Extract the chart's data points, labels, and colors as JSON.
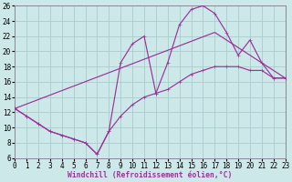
{
  "xlabel": "Windchill (Refroidissement éolien,°C)",
  "bg_color": "#cce8e8",
  "grid_color": "#aacccc",
  "line_color": "#993399",
  "xlim": [
    0,
    23
  ],
  "ylim": [
    6,
    26
  ],
  "xticks": [
    0,
    1,
    2,
    3,
    4,
    5,
    6,
    7,
    8,
    9,
    10,
    11,
    12,
    13,
    14,
    15,
    16,
    17,
    18,
    19,
    20,
    21,
    22,
    23
  ],
  "yticks": [
    6,
    8,
    10,
    12,
    14,
    16,
    18,
    20,
    22,
    24,
    26
  ],
  "line1_x": [
    0,
    1,
    2,
    3,
    4,
    5,
    6,
    7,
    8,
    9,
    10,
    11,
    12,
    13,
    14,
    15,
    16,
    17,
    18,
    19,
    20,
    21,
    22,
    23
  ],
  "line1_y": [
    12.5,
    11.5,
    10.5,
    9.5,
    9.0,
    8.5,
    8.0,
    6.5,
    9.5,
    11.5,
    13.0,
    14.0,
    14.5,
    15.0,
    16.0,
    17.0,
    17.5,
    18.0,
    18.0,
    18.0,
    17.5,
    17.5,
    16.5,
    16.5
  ],
  "line2_x": [
    0,
    1,
    2,
    3,
    4,
    5,
    6,
    7,
    8,
    9,
    10,
    11,
    12,
    13,
    14,
    15,
    16,
    17,
    18,
    19,
    20,
    21,
    22,
    23
  ],
  "line2_y": [
    12.5,
    11.5,
    10.5,
    9.5,
    9.0,
    8.5,
    8.0,
    6.5,
    9.5,
    18.5,
    21.0,
    22.0,
    14.5,
    18.5,
    23.5,
    25.5,
    26.0,
    25.0,
    22.5,
    19.5,
    21.5,
    18.5,
    16.5,
    16.5
  ],
  "line3_x": [
    0,
    17,
    23
  ],
  "line3_y": [
    12.5,
    22.5,
    16.5
  ],
  "tick_fontsize": 5.5,
  "label_fontsize": 5.8
}
